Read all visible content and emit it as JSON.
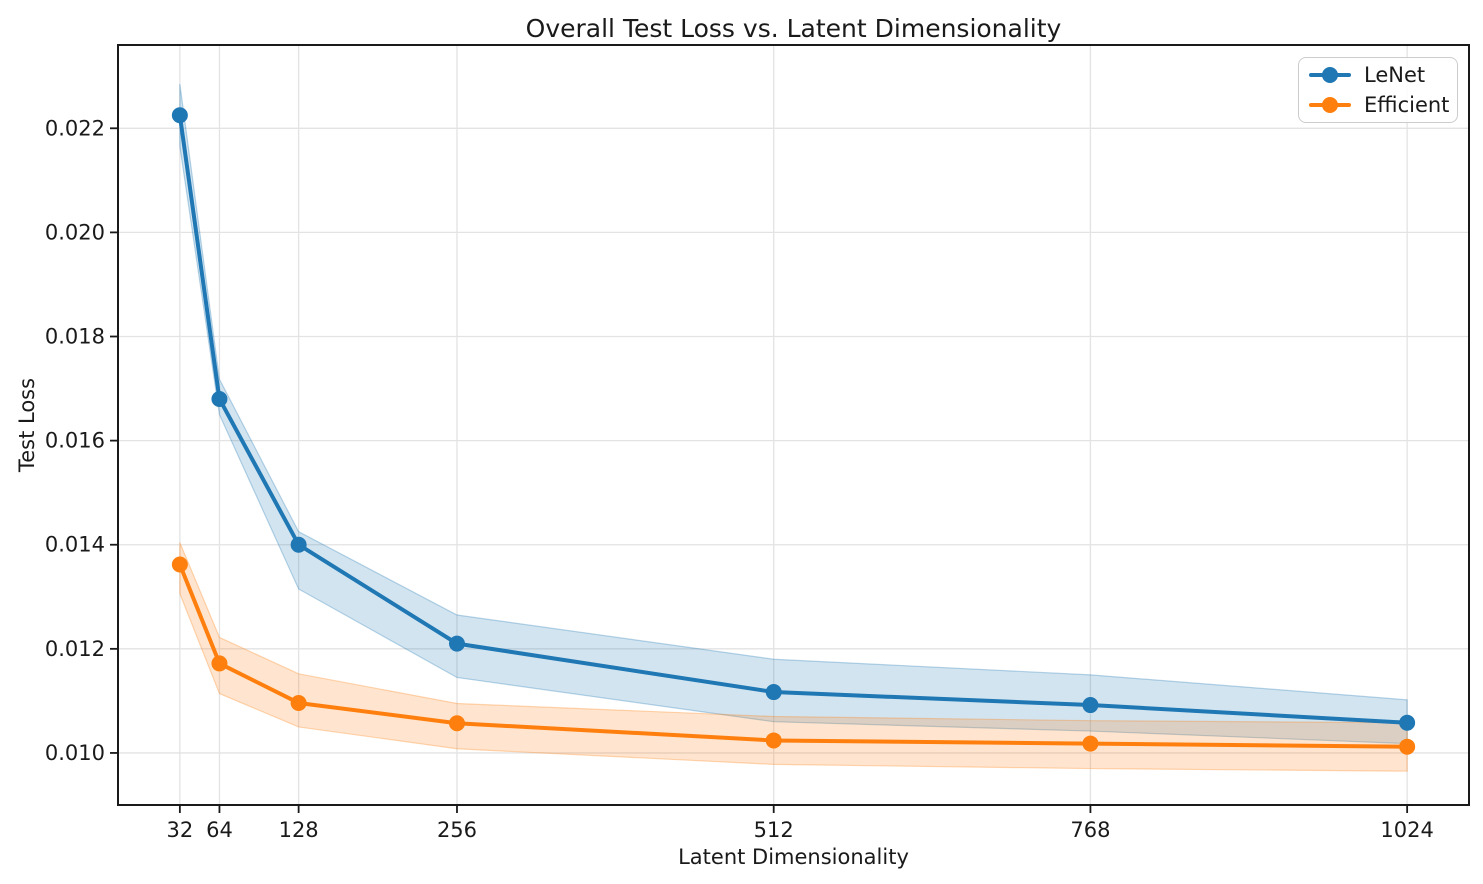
{
  "chart_data": {
    "type": "line",
    "title": "Overall Test Loss vs. Latent Dimensionality",
    "xlabel": "Latent Dimensionality",
    "ylabel": "Test Loss",
    "x": [
      32,
      64,
      128,
      256,
      512,
      768,
      1024
    ],
    "xticks": [
      32,
      64,
      128,
      256,
      512,
      768,
      1024
    ],
    "xtick_labels": [
      "32",
      "64",
      "128",
      "256",
      "512",
      "768",
      "1024"
    ],
    "yticks": [
      0.01,
      0.012,
      0.014,
      0.016,
      0.018,
      0.02,
      0.022
    ],
    "ytick_labels": [
      "0.010",
      "0.012",
      "0.014",
      "0.016",
      "0.018",
      "0.020",
      "0.022"
    ],
    "xlim": [
      -18,
      1074
    ],
    "ylim": [
      0.009,
      0.0236
    ],
    "grid": true,
    "grid_color": "#e3e3e3",
    "axis_color": "#1a1a1a",
    "background_color": "#ffffff",
    "band_opacity": 0.2,
    "legend_position": "upper right",
    "series": [
      {
        "name": "LeNet",
        "color": "#1f77b4",
        "values": [
          0.02225,
          0.0168,
          0.014,
          0.0121,
          0.01117,
          0.01092,
          0.01058
        ],
        "band_low": [
          0.02165,
          0.0165,
          0.01315,
          0.01145,
          0.0106,
          0.01042,
          0.01018
        ],
        "band_high": [
          0.02285,
          0.01718,
          0.01425,
          0.01265,
          0.0118,
          0.0115,
          0.01102
        ]
      },
      {
        "name": "Efficient",
        "color": "#ff7f0e",
        "values": [
          0.01362,
          0.01172,
          0.01096,
          0.01057,
          0.01024,
          0.01018,
          0.01012
        ],
        "band_low": [
          0.01306,
          0.01114,
          0.0105,
          0.01008,
          0.00978,
          0.0097,
          0.00965
        ],
        "band_high": [
          0.01404,
          0.01222,
          0.01152,
          0.01095,
          0.0107,
          0.01062,
          0.01058
        ]
      }
    ]
  }
}
